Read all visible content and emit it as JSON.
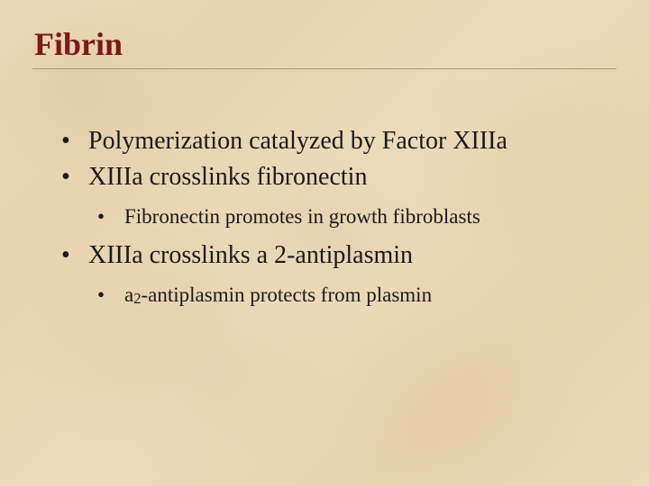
{
  "slide": {
    "title": "Fibrin",
    "title_color": "#7a1a1a",
    "title_fontsize": 36,
    "body_color": "#1a1a1a",
    "bullets": [
      {
        "text": "Polymerization catalyzed by Factor XIIIa"
      },
      {
        "text": "XIIIa crosslinks fibronectin",
        "children": [
          {
            "text": "Fibronectin promotes in growth fibroblasts"
          }
        ]
      },
      {
        "text_prefix": "XIIIa crosslinks ",
        "alpha": "a 2",
        "text_suffix": "-antiplasmin",
        "children": [
          {
            "prefix": "a",
            "sub": "2",
            "suffix": "-antiplasmin protects from plasmin"
          }
        ]
      }
    ],
    "background_base": "#ead9b8",
    "rule_color": "rgba(40,30,20,0.35)",
    "lvl1_fontsize": 28,
    "lvl2_fontsize": 23
  }
}
